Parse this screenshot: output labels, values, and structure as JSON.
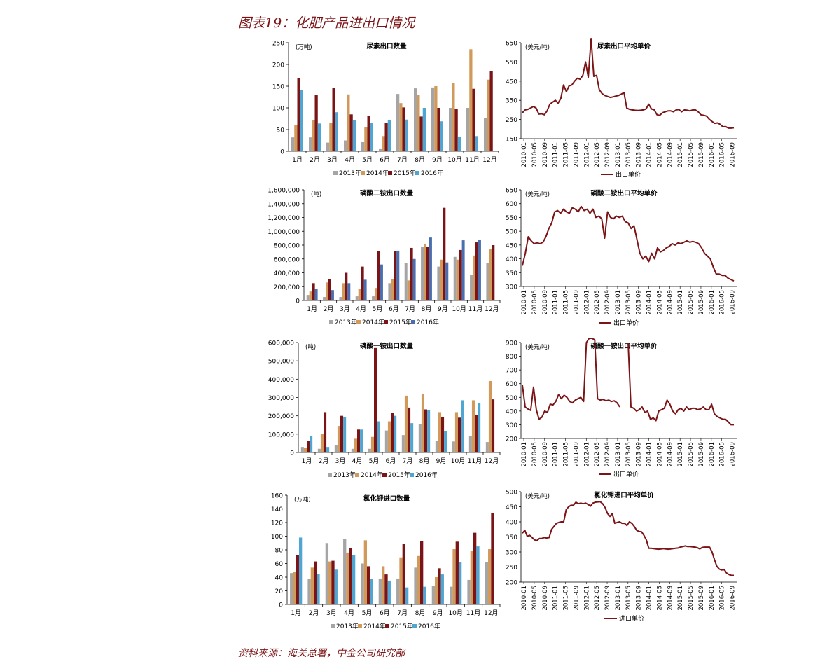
{
  "page": {
    "figure_title": "图表19：化肥产品进出口情况",
    "source": "资料来源：海关总署，中金公司研究部"
  },
  "colors": {
    "y2013": "#a5a5a5",
    "y2014": "#d19a5a",
    "y2015": "#7b1416",
    "y2015_dap": "#7b1416",
    "y2016_blue": "#4fa6d2",
    "y2016_dap": "#4a6fb0",
    "line": "#7b1416",
    "rule": "#7b1416"
  },
  "chart_data": [
    {
      "type": "bar",
      "title": "尿素出口数量",
      "unit": "(万吨)",
      "categories": [
        "1月",
        "2月",
        "3月",
        "4月",
        "5月",
        "6月",
        "7月",
        "8月",
        "9月",
        "10月",
        "11月",
        "12月"
      ],
      "ylim": [
        0,
        250
      ],
      "yticks": [
        "0",
        "50",
        "100",
        "150",
        "200",
        "250"
      ],
      "series": [
        {
          "name": "2013年",
          "color": "#a5a5a5",
          "values": [
            32,
            32,
            20,
            25,
            21,
            5,
            132,
            145,
            147,
            100,
            100,
            77
          ]
        },
        {
          "name": "2014年",
          "color": "#d19a5a",
          "values": [
            60,
            72,
            65,
            131,
            55,
            35,
            111,
            130,
            150,
            157,
            235,
            165
          ]
        },
        {
          "name": "2015年",
          "color": "#7b1416",
          "values": [
            168,
            129,
            146,
            85,
            82,
            66,
            101,
            80,
            100,
            97,
            144,
            184
          ]
        },
        {
          "name": "2016年",
          "color": "#4fa6d2",
          "values": [
            142,
            64,
            90,
            72,
            66,
            72,
            73,
            100,
            69,
            34,
            35,
            null
          ]
        }
      ]
    },
    {
      "type": "line",
      "title": "尿素出口平均单价",
      "unit": "(美元/吨)",
      "ylim": [
        150,
        650
      ],
      "yticks": [
        "150",
        "250",
        "350",
        "450",
        "550",
        "650"
      ],
      "xticks": [
        "2010-01",
        "2010-05",
        "2010-09",
        "2011-01",
        "2011-05",
        "2011-09",
        "2012-01",
        "2012-05",
        "2012-09",
        "2013-01",
        "2013-05",
        "2013-09",
        "2014-01",
        "2014-05",
        "2014-09",
        "2015-01",
        "2015-05",
        "2015-09",
        "2016-01",
        "2016-05",
        "2016-09"
      ],
      "series": [
        {
          "name": "出口单价",
          "color": "#7b1416",
          "values": [
            285,
            300,
            303,
            310,
            318,
            310,
            278,
            280,
            275,
            295,
            330,
            340,
            350,
            335,
            360,
            430,
            395,
            425,
            430,
            450,
            465,
            460,
            480,
            550,
            470,
            680,
            475,
            480,
            405,
            385,
            375,
            370,
            365,
            368,
            372,
            375,
            382,
            390,
            310,
            303,
            300,
            298,
            297,
            298,
            300,
            305,
            330,
            305,
            300,
            275,
            272,
            285,
            290,
            295,
            295,
            290,
            300,
            302,
            290,
            300,
            298,
            295,
            300,
            300,
            290,
            275,
            272,
            268,
            252,
            240,
            230,
            232,
            225,
            212,
            213,
            205,
            205,
            207
          ]
        }
      ]
    },
    {
      "type": "bar",
      "title": "磷酸二铵出口数量",
      "unit": "(吨)",
      "categories": [
        "1月",
        "2月",
        "3月",
        "4月",
        "5月",
        "6月",
        "7月",
        "8月",
        "9月",
        "10月",
        "11月",
        "12月"
      ],
      "ylim": [
        0,
        1600000
      ],
      "yticks": [
        "0",
        "200,000",
        "400,000",
        "600,000",
        "800,000",
        "1,000,000",
        "1,200,000",
        "1,400,000",
        "1,600,000"
      ],
      "series": [
        {
          "name": "2013年",
          "color": "#a5a5a5",
          "values": [
            80000,
            50000,
            50000,
            60000,
            60000,
            250000,
            540000,
            770000,
            490000,
            630000,
            370000,
            540000
          ]
        },
        {
          "name": "2014年",
          "color": "#d19a5a",
          "values": [
            130000,
            260000,
            250000,
            170000,
            180000,
            310000,
            290000,
            810000,
            590000,
            590000,
            650000,
            740000
          ]
        },
        {
          "name": "2015年",
          "color": "#7b1416",
          "values": [
            250000,
            310000,
            400000,
            490000,
            710000,
            710000,
            760000,
            770000,
            1340000,
            730000,
            840000,
            800000
          ]
        },
        {
          "name": "2016年",
          "color": "#4a6fb0",
          "values": [
            170000,
            150000,
            250000,
            300000,
            520000,
            720000,
            600000,
            910000,
            550000,
            870000,
            880000,
            null
          ]
        }
      ]
    },
    {
      "type": "line",
      "title": "磷酸二铵出口平均单价",
      "unit": "(美元/吨)",
      "ylim": [
        300,
        650
      ],
      "yticks": [
        "300",
        "350",
        "400",
        "450",
        "500",
        "550",
        "600",
        "650"
      ],
      "xticks": [
        "2010-01",
        "2010-05",
        "2010-09",
        "2011-01",
        "2011-05",
        "2011-09",
        "2012-01",
        "2012-05",
        "2012-09",
        "2013-01",
        "2013-05",
        "2013-09",
        "2014-01",
        "2014-05",
        "2014-09",
        "2015-01",
        "2015-05",
        "2015-09",
        "2016-01",
        "2016-05",
        "2016-09"
      ],
      "series": [
        {
          "name": "出口单价",
          "color": "#7b1416",
          "values": [
            375,
            420,
            480,
            465,
            455,
            458,
            455,
            460,
            480,
            510,
            530,
            570,
            575,
            565,
            580,
            570,
            565,
            585,
            580,
            570,
            590,
            575,
            580,
            565,
            580,
            550,
            555,
            545,
            475,
            570,
            550,
            545,
            555,
            550,
            555,
            535,
            530,
            510,
            520,
            470,
            420,
            400,
            410,
            390,
            420,
            400,
            440,
            425,
            430,
            440,
            445,
            455,
            450,
            458,
            455,
            460,
            465,
            460,
            463,
            460,
            455,
            440,
            420,
            410,
            400,
            370,
            345,
            345,
            340,
            340,
            330,
            325,
            320
          ]
        }
      ]
    },
    {
      "type": "bar",
      "title": "磷酸一铵出口数量",
      "unit": "(吨)",
      "categories": [
        "1月",
        "2月",
        "3月",
        "4月",
        "5月",
        "6月",
        "7月",
        "8月",
        "9月",
        "10月",
        "11月",
        "12月"
      ],
      "ylim": [
        0,
        600000
      ],
      "yticks": [
        "0",
        "100,000",
        "200,000",
        "300,000",
        "400,000",
        "500,000",
        "600,000"
      ],
      "series": [
        {
          "name": "2013年",
          "color": "#a5a5a5",
          "values": [
            30000,
            20000,
            40000,
            20000,
            20000,
            120000,
            95000,
            155000,
            65000,
            60000,
            90000,
            57000
          ]
        },
        {
          "name": "2014年",
          "color": "#d19a5a",
          "values": [
            25000,
            100000,
            145000,
            75000,
            85000,
            170000,
            310000,
            320000,
            220000,
            220000,
            285000,
            390000
          ]
        },
        {
          "name": "2015年",
          "color": "#7b1416",
          "values": [
            65000,
            220000,
            200000,
            125000,
            570000,
            215000,
            245000,
            235000,
            195000,
            190000,
            205000,
            290000
          ]
        },
        {
          "name": "2016年",
          "color": "#4fa6d2",
          "values": [
            90000,
            30000,
            195000,
            125000,
            170000,
            200000,
            160000,
            230000,
            115000,
            285000,
            270000,
            null
          ]
        }
      ]
    },
    {
      "type": "line",
      "title": "磷酸一铵出口平均单价",
      "unit": "(美元/吨)",
      "ylim": [
        200,
        900
      ],
      "yticks": [
        "200",
        "300",
        "400",
        "500",
        "600",
        "700",
        "800",
        "900"
      ],
      "xticks": [
        "2010-01",
        "2010-05",
        "2010-09",
        "2011-01",
        "2011-05",
        "2011-09",
        "2012-01",
        "2012-05",
        "2012-09",
        "2013-01",
        "2013-05",
        "2013-09",
        "2014-01",
        "2014-05",
        "2014-09",
        "2015-01",
        "2015-05",
        "2015-09",
        "2016-01",
        "2016-05",
        "2016-09"
      ],
      "series": [
        {
          "name": "出口单价",
          "color": "#7b1416",
          "values": [
            590,
            430,
            415,
            405,
            575,
            410,
            340,
            355,
            400,
            390,
            450,
            445,
            470,
            520,
            490,
            515,
            500,
            470,
            460,
            480,
            490,
            500,
            470,
            900,
            1000,
            1000,
            920,
            490,
            480,
            485,
            475,
            480,
            470,
            475,
            460,
            430,
            null,
            null,
            900,
            430,
            420,
            400,
            410,
            430,
            390,
            400,
            340,
            350,
            330,
            400,
            410,
            420,
            480,
            450,
            400,
            380,
            410,
            420,
            400,
            430,
            410,
            420,
            420,
            410,
            415,
            430,
            410,
            410,
            450,
            380,
            360,
            350,
            340,
            340,
            320,
            300,
            300
          ]
        }
      ]
    },
    {
      "type": "bar",
      "title": "氯化钾进口数量",
      "unit": "(万吨)",
      "categories": [
        "1月",
        "2月",
        "3月",
        "4月",
        "5月",
        "6月",
        "7月",
        "8月",
        "9月",
        "10月",
        "11月",
        "12月"
      ],
      "ylim": [
        0,
        160
      ],
      "yticks": [
        "0",
        "20",
        "40",
        "60",
        "80",
        "100",
        "120",
        "140",
        "160"
      ],
      "series": [
        {
          "name": "2013年",
          "color": "#a5a5a5",
          "values": [
            46,
            37,
            90,
            96,
            60,
            38,
            38,
            54,
            27,
            26,
            36,
            62
          ]
        },
        {
          "name": "2014年",
          "color": "#d19a5a",
          "values": [
            48,
            54,
            63,
            76,
            94,
            56,
            69,
            71,
            40,
            81,
            78,
            81
          ]
        },
        {
          "name": "2015年",
          "color": "#7b1416",
          "values": [
            72,
            63,
            64,
            83,
            56,
            44,
            89,
            93,
            53,
            92,
            105,
            134
          ]
        },
        {
          "name": "2016年",
          "color": "#4fa6d2",
          "values": [
            98,
            45,
            51,
            72,
            37,
            35,
            25,
            26,
            44,
            62,
            85,
            null
          ]
        }
      ]
    },
    {
      "type": "line",
      "title": "氯化钾进口平均单价",
      "unit": "(美元/吨)",
      "ylim": [
        200,
        500
      ],
      "yticks": [
        "200",
        "250",
        "300",
        "350",
        "400",
        "450",
        "500"
      ],
      "xticks": [
        "2010-01",
        "2010-05",
        "2010-09",
        "2011-01",
        "2011-05",
        "2011-09",
        "2012-01",
        "2012-05",
        "2012-09",
        "2013-01",
        "2013-05",
        "2013-09",
        "2014-01",
        "2014-05",
        "2014-09",
        "2015-01",
        "2015-05",
        "2015-09",
        "2016-01",
        "2016-05",
        "2016-09"
      ],
      "series": [
        {
          "name": "进口单价",
          "color": "#7b1416",
          "values": [
            362,
            372,
            352,
            355,
            348,
            340,
            338,
            345,
            345,
            348,
            346,
            348,
            375,
            385,
            395,
            398,
            400,
            400,
            440,
            450,
            455,
            455,
            465,
            460,
            462,
            460,
            462,
            458,
            452,
            462,
            465,
            466,
            467,
            460,
            448,
            428,
            418,
            428,
            395,
            398,
            400,
            395,
            395,
            388,
            400,
            395,
            385,
            372,
            368,
            367,
            355,
            340,
            312,
            312,
            311,
            310,
            309,
            310,
            311,
            310,
            309,
            310,
            311,
            312,
            313,
            316,
            318,
            320,
            318,
            318,
            317,
            316,
            314,
            310,
            315,
            316,
            316,
            316,
            300,
            275,
            252,
            243,
            240,
            242,
            230,
            225,
            222,
            222
          ]
        }
      ]
    }
  ]
}
